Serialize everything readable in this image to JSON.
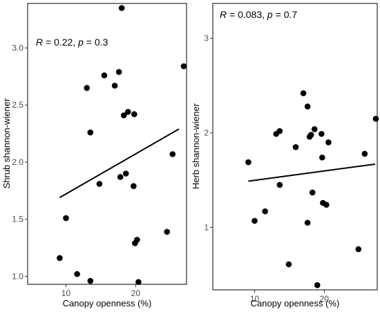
{
  "chart_data": [
    {
      "type": "scatter",
      "xlabel": "Canopy openness (%)",
      "ylabel": "Shrub shannon-wiener",
      "annotation": {
        "r_label": "R",
        "r_value": "0.22",
        "p_label": "p",
        "p_value": "0.3"
      },
      "xlim": [
        4.5,
        27.3
      ],
      "ylim": [
        0.93,
        3.39
      ],
      "x_ticks": [
        10,
        20
      ],
      "y_ticks": [
        1.0,
        1.5,
        2.0,
        2.5,
        3.0
      ],
      "y_tick_labels": [
        "1.0",
        "1.5",
        "2.0",
        "2.5",
        "3.0"
      ],
      "x_tick_labels": [
        "10",
        "20"
      ],
      "points": [
        {
          "x": 9.1,
          "y": 1.16
        },
        {
          "x": 10.0,
          "y": 1.51
        },
        {
          "x": 11.6,
          "y": 1.02
        },
        {
          "x": 13.0,
          "y": 2.65
        },
        {
          "x": 13.5,
          "y": 0.96
        },
        {
          "x": 13.5,
          "y": 2.26
        },
        {
          "x": 14.8,
          "y": 1.81
        },
        {
          "x": 15.5,
          "y": 2.76
        },
        {
          "x": 17.0,
          "y": 2.67
        },
        {
          "x": 17.6,
          "y": 2.79
        },
        {
          "x": 17.8,
          "y": 1.87
        },
        {
          "x": 18.0,
          "y": 3.35
        },
        {
          "x": 18.3,
          "y": 2.41
        },
        {
          "x": 18.6,
          "y": 1.9
        },
        {
          "x": 18.9,
          "y": 2.44
        },
        {
          "x": 19.7,
          "y": 1.79
        },
        {
          "x": 19.8,
          "y": 2.42
        },
        {
          "x": 19.9,
          "y": 1.29
        },
        {
          "x": 20.2,
          "y": 1.32
        },
        {
          "x": 20.4,
          "y": 0.95
        },
        {
          "x": 24.5,
          "y": 1.39
        },
        {
          "x": 25.3,
          "y": 2.07
        },
        {
          "x": 26.9,
          "y": 2.84
        }
      ],
      "fit_line": {
        "x": [
          9.1,
          26.2
        ],
        "y": [
          1.69,
          2.29
        ]
      }
    },
    {
      "type": "scatter",
      "xlabel": "Canopy openness (%)",
      "ylabel": "Herb shannon-wiener",
      "annotation": {
        "r_label": "R",
        "r_value": "0.083",
        "p_label": "p",
        "p_value": "0.7"
      },
      "xlim": [
        4.0,
        27.6
      ],
      "ylim": [
        0.34,
        3.37
      ],
      "x_ticks": [
        10,
        20
      ],
      "y_ticks": [
        1,
        2,
        3
      ],
      "y_tick_labels": [
        "1",
        "2",
        "3"
      ],
      "x_tick_labels": [
        "10",
        "20"
      ],
      "points": [
        {
          "x": 9.1,
          "y": 1.69
        },
        {
          "x": 10.0,
          "y": 1.07
        },
        {
          "x": 11.5,
          "y": 1.17
        },
        {
          "x": 13.1,
          "y": 1.99
        },
        {
          "x": 13.6,
          "y": 2.02
        },
        {
          "x": 13.6,
          "y": 1.45
        },
        {
          "x": 14.9,
          "y": 0.61
        },
        {
          "x": 15.9,
          "y": 1.85
        },
        {
          "x": 17.0,
          "y": 2.42
        },
        {
          "x": 17.6,
          "y": 2.28
        },
        {
          "x": 17.6,
          "y": 1.05
        },
        {
          "x": 17.9,
          "y": 1.96
        },
        {
          "x": 18.1,
          "y": 1.98
        },
        {
          "x": 18.3,
          "y": 1.37
        },
        {
          "x": 18.6,
          "y": 2.04
        },
        {
          "x": 19.0,
          "y": 0.39
        },
        {
          "x": 19.6,
          "y": 1.99
        },
        {
          "x": 19.7,
          "y": 1.74
        },
        {
          "x": 19.8,
          "y": 1.26
        },
        {
          "x": 20.3,
          "y": 1.24
        },
        {
          "x": 20.6,
          "y": 1.9
        },
        {
          "x": 24.9,
          "y": 0.77
        },
        {
          "x": 25.8,
          "y": 1.78
        },
        {
          "x": 27.4,
          "y": 2.15
        }
      ],
      "fit_line": {
        "x": [
          9.1,
          27.3
        ],
        "y": [
          1.49,
          1.67
        ]
      }
    }
  ]
}
